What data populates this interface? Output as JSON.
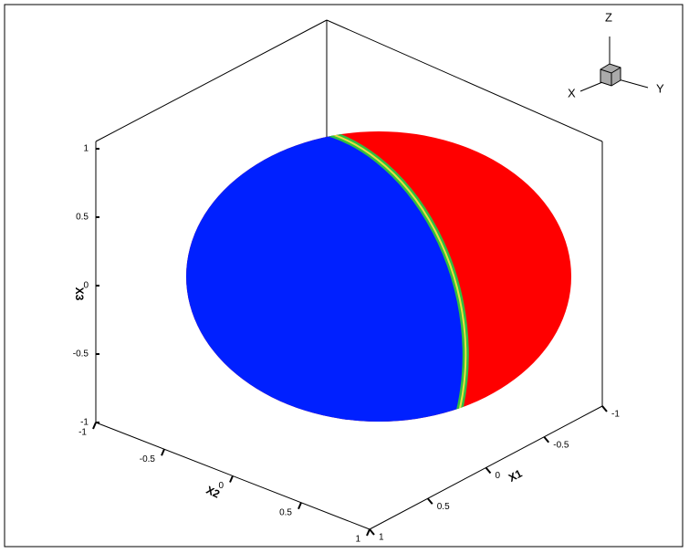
{
  "chart_data": {
    "type": "sphere3d",
    "axes": [
      {
        "label": "X1",
        "lim": [
          -1,
          1
        ],
        "ticks": [
          -1,
          -0.5,
          0,
          0.5,
          1
        ]
      },
      {
        "label": "X2",
        "lim": [
          -1,
          1
        ],
        "ticks": [
          -1,
          -0.5,
          0,
          0.5,
          1
        ]
      },
      {
        "label": "X3",
        "lim": [
          -1,
          1
        ],
        "ticks": [
          -1,
          -0.5,
          0,
          0.5,
          1
        ]
      }
    ],
    "triad": [
      "X",
      "Y",
      "Z"
    ]
  }
}
